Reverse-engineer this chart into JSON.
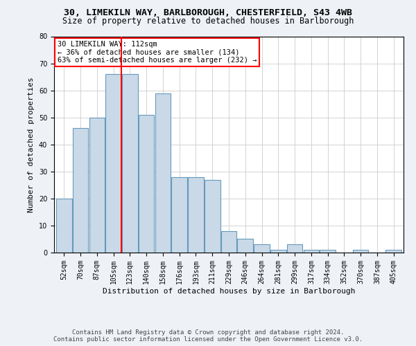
{
  "title1": "30, LIMEKILN WAY, BARLBOROUGH, CHESTERFIELD, S43 4WB",
  "title2": "Size of property relative to detached houses in Barlborough",
  "xlabel": "Distribution of detached houses by size in Barlborough",
  "ylabel": "Number of detached properties",
  "footer1": "Contains HM Land Registry data © Crown copyright and database right 2024.",
  "footer2": "Contains public sector information licensed under the Open Government Licence v3.0.",
  "annotation_line1": "30 LIMEKILN WAY: 112sqm",
  "annotation_line2": "← 36% of detached houses are smaller (134)",
  "annotation_line3": "63% of semi-detached houses are larger (232) →",
  "bar_labels": [
    "52sqm",
    "70sqm",
    "87sqm",
    "105sqm",
    "123sqm",
    "140sqm",
    "158sqm",
    "176sqm",
    "193sqm",
    "211sqm",
    "229sqm",
    "246sqm",
    "264sqm",
    "281sqm",
    "299sqm",
    "317sqm",
    "334sqm",
    "352sqm",
    "370sqm",
    "387sqm",
    "405sqm"
  ],
  "bar_values": [
    20,
    46,
    50,
    66,
    66,
    51,
    59,
    28,
    28,
    27,
    8,
    5,
    3,
    1,
    3,
    1,
    1,
    0,
    1,
    0,
    1
  ],
  "bar_color": "#c9d9e8",
  "bar_edge_color": "#6699bb",
  "red_line_x": 3.5,
  "ylim": [
    0,
    80
  ],
  "yticks": [
    0,
    10,
    20,
    30,
    40,
    50,
    60,
    70,
    80
  ],
  "bg_color": "#eef2f7",
  "plot_bg_color": "#ffffff",
  "grid_color": "#cccccc",
  "title_fontsize": 9.5,
  "subtitle_fontsize": 8.5,
  "axis_label_fontsize": 8,
  "tick_fontsize": 7,
  "footer_fontsize": 6.5,
  "annotation_fontsize": 7.5
}
